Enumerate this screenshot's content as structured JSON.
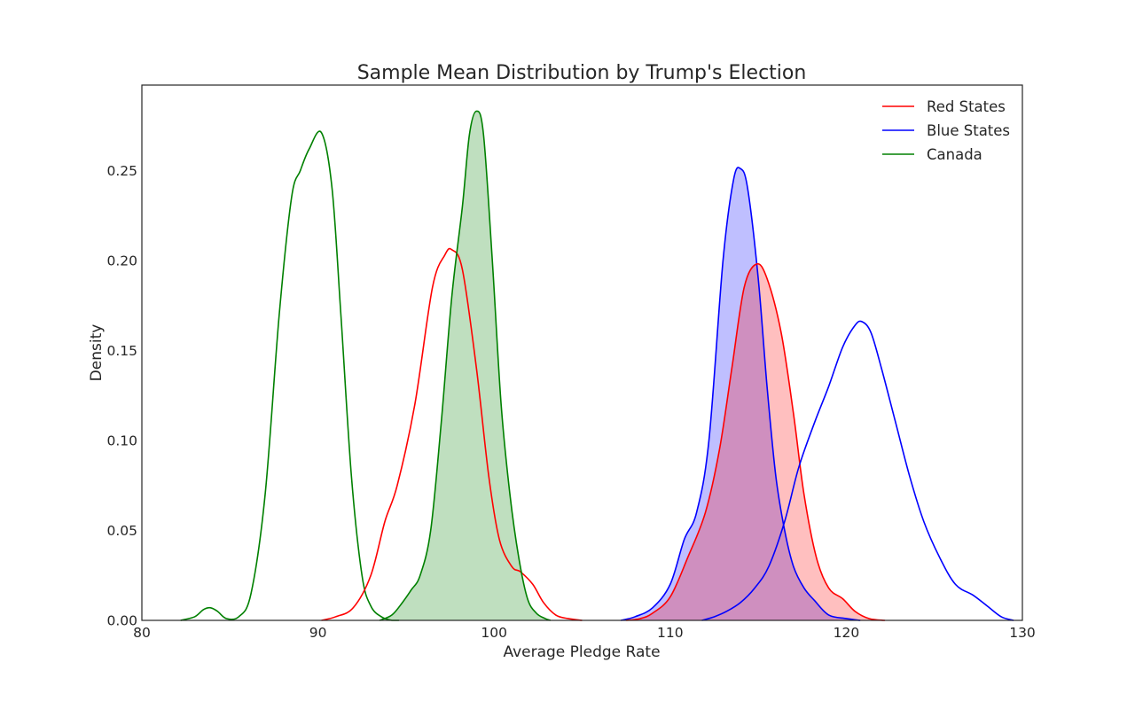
{
  "chart_data": {
    "type": "area",
    "title": "Sample Mean Distribution by Trump's Election",
    "xlabel": "Average Pledge Rate",
    "ylabel": "Density",
    "xlim": [
      80,
      130
    ],
    "ylim": [
      0,
      0.3
    ],
    "xticks": [
      80,
      90,
      100,
      110,
      120,
      130
    ],
    "yticks": [
      0.0,
      0.05,
      0.1,
      0.15,
      0.2,
      0.25
    ],
    "xtick_labels": [
      "80",
      "90",
      "100",
      "110",
      "120",
      "130"
    ],
    "ytick_labels": [
      "0.00",
      "0.05",
      "0.10",
      "0.15",
      "0.20",
      "0.25"
    ],
    "grid": false,
    "legend": {
      "position": "top-right",
      "entries": [
        {
          "label": "Red States",
          "color": "#ff0000"
        },
        {
          "label": "Blue States",
          "color": "#0000ff"
        },
        {
          "label": "Canada",
          "color": "#008000"
        }
      ]
    },
    "series": [
      {
        "group": "Canada",
        "color": "#008000",
        "filled": false,
        "x": [
          82.2,
          83.0,
          83.5,
          83.9,
          84.3,
          84.8,
          85.5,
          86.2,
          87.0,
          87.8,
          88.5,
          89.0,
          89.5,
          90.2,
          90.8,
          91.3,
          91.9,
          92.5,
          93.0,
          93.6,
          94.2,
          94.6
        ],
        "y": [
          0.0,
          0.002,
          0.006,
          0.007,
          0.005,
          0.001,
          0.002,
          0.015,
          0.07,
          0.17,
          0.235,
          0.25,
          0.262,
          0.271,
          0.24,
          0.17,
          0.08,
          0.025,
          0.008,
          0.002,
          0.0,
          0.0
        ]
      },
      {
        "group": "Red States",
        "color": "#ff0000",
        "filled": false,
        "x": [
          90.2,
          91.0,
          92.0,
          93.0,
          93.8,
          94.5,
          95.5,
          96.5,
          97.2,
          97.6,
          98.2,
          99.0,
          99.7,
          100.3,
          101.0,
          101.5,
          102.2,
          102.8,
          103.5,
          104.2,
          105.0
        ],
        "y": [
          0.0,
          0.002,
          0.007,
          0.025,
          0.055,
          0.075,
          0.12,
          0.185,
          0.203,
          0.206,
          0.195,
          0.14,
          0.08,
          0.045,
          0.03,
          0.027,
          0.02,
          0.01,
          0.003,
          0.001,
          0.0
        ]
      },
      {
        "group": "Canada",
        "color": "#008000",
        "filled": true,
        "x": [
          93.5,
          94.2,
          94.8,
          95.3,
          95.8,
          96.4,
          97.0,
          97.6,
          98.2,
          98.6,
          99.0,
          99.4,
          99.9,
          100.4,
          100.9,
          101.4,
          101.9,
          102.4,
          102.9,
          103.2
        ],
        "y": [
          0.0,
          0.003,
          0.01,
          0.017,
          0.025,
          0.05,
          0.11,
          0.18,
          0.23,
          0.27,
          0.283,
          0.27,
          0.2,
          0.12,
          0.07,
          0.035,
          0.012,
          0.004,
          0.001,
          0.0
        ]
      },
      {
        "group": "Blue States",
        "color": "#0000ff",
        "filled": true,
        "x": [
          107.2,
          108.0,
          109.0,
          110.0,
          110.8,
          111.5,
          112.2,
          113.0,
          113.6,
          114.0,
          114.4,
          115.0,
          115.5,
          116.0,
          116.5,
          117.0,
          117.6,
          118.2,
          119.0,
          120.0,
          120.8
        ],
        "y": [
          0.0,
          0.002,
          0.007,
          0.02,
          0.045,
          0.06,
          0.1,
          0.2,
          0.245,
          0.251,
          0.24,
          0.19,
          0.13,
          0.08,
          0.05,
          0.03,
          0.018,
          0.011,
          0.003,
          0.001,
          0.0
        ]
      },
      {
        "group": "Red States",
        "color": "#ff0000",
        "filled": true,
        "x": [
          107.5,
          108.3,
          109.0,
          110.0,
          111.0,
          112.0,
          112.8,
          113.5,
          114.2,
          114.9,
          115.5,
          116.3,
          117.0,
          117.6,
          118.3,
          119.0,
          119.8,
          120.5,
          121.3,
          122.2
        ],
        "y": [
          0.0,
          0.001,
          0.004,
          0.013,
          0.035,
          0.06,
          0.095,
          0.14,
          0.185,
          0.198,
          0.19,
          0.16,
          0.115,
          0.07,
          0.035,
          0.018,
          0.012,
          0.005,
          0.001,
          0.0
        ]
      },
      {
        "group": "Blue States",
        "color": "#0000ff",
        "filled": false,
        "x": [
          111.8,
          112.5,
          113.2,
          114.0,
          114.8,
          115.6,
          116.5,
          117.3,
          118.2,
          119.0,
          119.8,
          120.5,
          120.9,
          121.4,
          122.0,
          122.8,
          123.6,
          124.4,
          125.3,
          126.2,
          127.2,
          128.0,
          128.8,
          129.5
        ],
        "y": [
          0.0,
          0.002,
          0.005,
          0.01,
          0.018,
          0.03,
          0.055,
          0.085,
          0.11,
          0.13,
          0.152,
          0.164,
          0.166,
          0.16,
          0.14,
          0.11,
          0.08,
          0.055,
          0.035,
          0.02,
          0.014,
          0.008,
          0.002,
          0.0
        ]
      }
    ]
  }
}
